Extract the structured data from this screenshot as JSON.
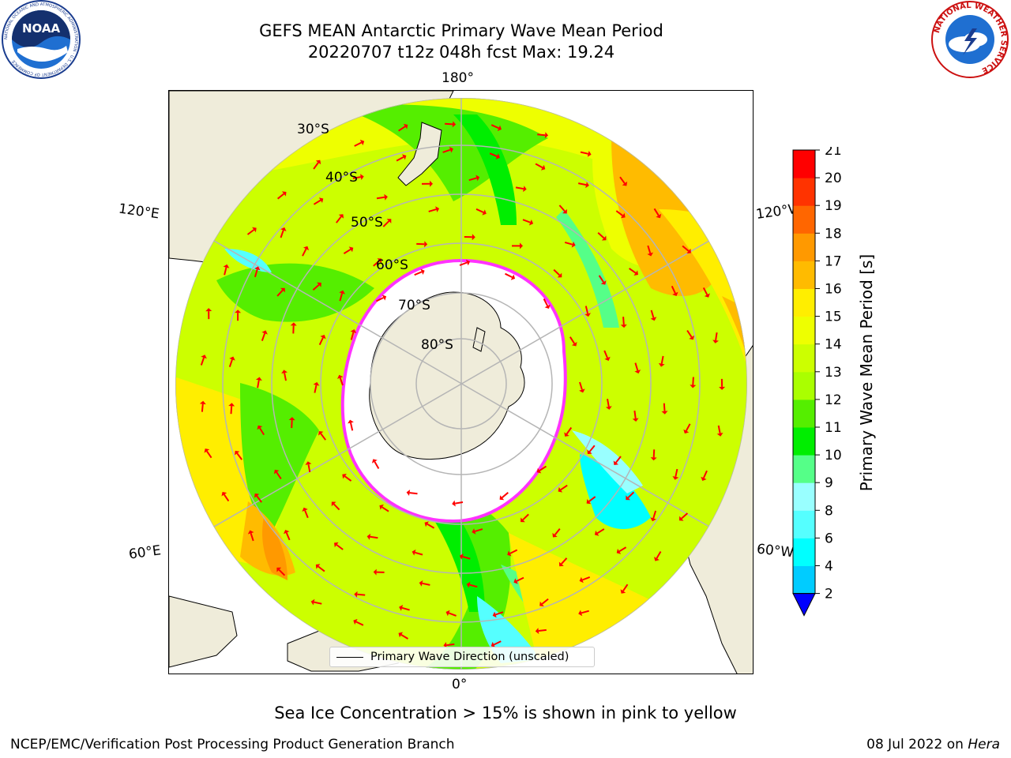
{
  "header": {
    "title_line1": "GEFS MEAN Antarctic Primary Wave Mean Period",
    "title_line2": "20220707 t12z 048h fcst   Max: 19.24"
  },
  "map": {
    "projection": "south-polar-stereographic",
    "longitude_labels": {
      "top": "180°",
      "bottom": "0°",
      "upper_left": "120°E",
      "upper_right": "120°W",
      "lower_left": "60°E",
      "lower_right": "60°W"
    },
    "latitude_labels": [
      "30°S",
      "40°S",
      "50°S",
      "60°S",
      "70°S",
      "80°S"
    ],
    "legend_label": "Primary Wave Direction (unscaled)",
    "colors": {
      "land": "#efecda",
      "sea_ice_free": "#ffffff",
      "arrow": "#ff0000",
      "sea_ice_edge": "#ff33ff",
      "graticule": "#b5b5b5"
    }
  },
  "colorbar": {
    "title": "Primary Wave Mean Period [s]",
    "ticks": [
      "2",
      "4",
      "6",
      "8",
      "9",
      "10",
      "11",
      "12",
      "13",
      "14",
      "15",
      "16",
      "17",
      "18",
      "19",
      "20",
      "21"
    ],
    "colors": [
      "#0066ff",
      "#00ccff",
      "#00ffff",
      "#55ffff",
      "#99ffff",
      "#55ff88",
      "#00ee00",
      "#55ee00",
      "#aaff00",
      "#ccff00",
      "#eeff00",
      "#ffee00",
      "#ffbb00",
      "#ff9900",
      "#ff6600",
      "#ff3300",
      "#ff0000"
    ],
    "extend_color": "#0000ff"
  },
  "caption": "Sea Ice Concentration > 15% is shown in pink to yellow",
  "footer": {
    "left": "NCEP/EMC/Verification Post Processing Product Generation Branch",
    "date": "08 Jul 2022 on ",
    "machine": "Hera"
  },
  "logos": {
    "noaa": {
      "text": "NOAA",
      "ring": "NATIONAL OCEANIC AND ATMOSPHERIC ADMINISTRATION · U.S. DEPARTMENT OF COMMERCE"
    },
    "nws": {
      "ring": "NATIONAL WEATHER SERVICE"
    }
  }
}
